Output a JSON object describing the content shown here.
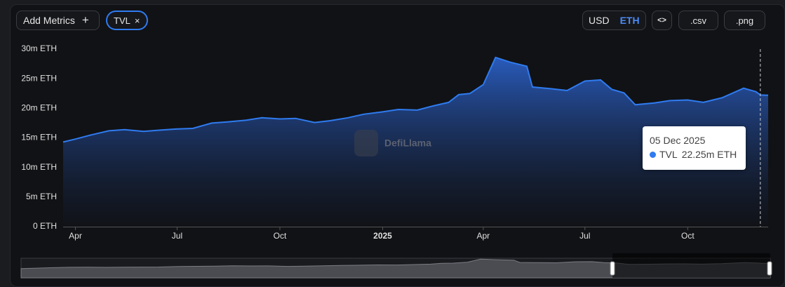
{
  "ui": {
    "add_metrics": "Add Metrics",
    "plus": "+",
    "chip_close": "×",
    "usd": "USD",
    "eth": "ETH",
    "embed": "<>",
    "csv": ".csv",
    "png": ".png",
    "watermark": "DefiLlama"
  },
  "chart_data": {
    "type": "area",
    "x": [
      "2024-03-21",
      "2024-04-01",
      "2024-04-15",
      "2024-05-01",
      "2024-05-15",
      "2024-06-01",
      "2024-06-15",
      "2024-07-01",
      "2024-07-15",
      "2024-08-01",
      "2024-08-15",
      "2024-09-01",
      "2024-09-15",
      "2024-10-01",
      "2024-10-15",
      "2024-11-01",
      "2024-11-15",
      "2024-12-01",
      "2024-12-15",
      "2025-01-01",
      "2025-01-15",
      "2025-02-01",
      "2025-02-15",
      "2025-03-01",
      "2025-03-10",
      "2025-03-20",
      "2025-04-01",
      "2025-04-12",
      "2025-04-25",
      "2025-05-10",
      "2025-05-15",
      "2025-06-01",
      "2025-06-15",
      "2025-07-01",
      "2025-07-15",
      "2025-07-25",
      "2025-08-05",
      "2025-08-15",
      "2025-09-01",
      "2025-09-15",
      "2025-10-01",
      "2025-10-15",
      "2025-11-01",
      "2025-11-20",
      "2025-12-01",
      "2025-12-05",
      "2025-12-12"
    ],
    "series": [
      {
        "name": "TVL",
        "color": "#2f7bf0",
        "values": [
          14.3,
          14.8,
          15.5,
          16.2,
          16.4,
          16.1,
          16.3,
          16.5,
          16.6,
          17.5,
          17.7,
          18.0,
          18.4,
          18.2,
          18.3,
          17.6,
          17.9,
          18.4,
          19.0,
          19.4,
          19.8,
          19.7,
          20.4,
          21.0,
          22.3,
          22.5,
          24.0,
          28.6,
          27.8,
          27.1,
          23.6,
          23.3,
          23.0,
          24.6,
          24.8,
          23.2,
          22.6,
          20.6,
          20.9,
          21.3,
          21.4,
          21.0,
          21.8,
          23.4,
          22.8,
          22.25,
          22.2
        ]
      }
    ],
    "xlim": [
      "2024-03-21",
      "2025-12-12"
    ],
    "xticks": [
      {
        "value": "2024-04-01",
        "label": "Apr"
      },
      {
        "value": "2024-07-01",
        "label": "Jul"
      },
      {
        "value": "2024-10-01",
        "label": "Oct"
      },
      {
        "value": "2025-01-01",
        "label": "2025"
      },
      {
        "value": "2025-04-01",
        "label": "Apr"
      },
      {
        "value": "2025-07-01",
        "label": "Jul"
      },
      {
        "value": "2025-10-01",
        "label": "Oct"
      }
    ],
    "ylim": [
      0,
      30
    ],
    "yticks": [
      {
        "value": 0,
        "label": "0 ETH"
      },
      {
        "value": 5,
        "label": "5m ETH"
      },
      {
        "value": 10,
        "label": "10m ETH"
      },
      {
        "value": 15,
        "label": "15m ETH"
      },
      {
        "value": 20,
        "label": "20m ETH"
      },
      {
        "value": 25,
        "label": "25m ETH"
      },
      {
        "value": 30,
        "label": "30m ETH"
      }
    ],
    "tooltip": {
      "x": "2025-12-05",
      "title": "05 Dec 2025",
      "value": 22.25,
      "label": "22.25m ETH"
    }
  }
}
